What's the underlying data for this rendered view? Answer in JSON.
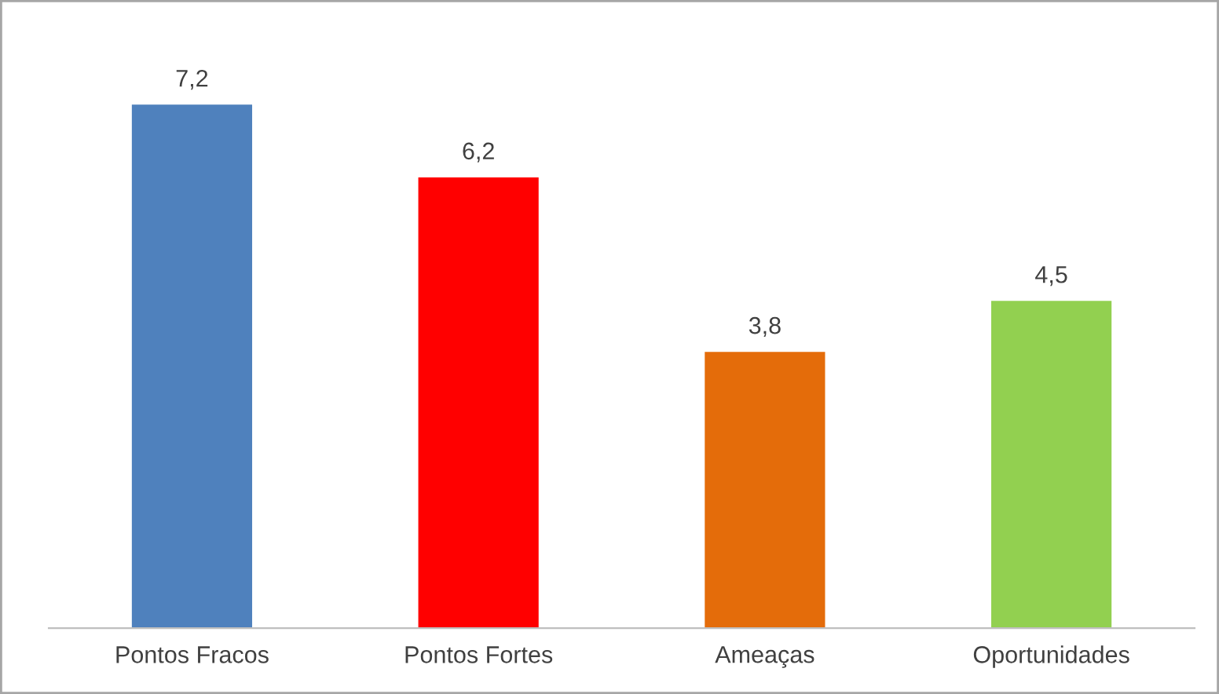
{
  "chart_data": {
    "type": "bar",
    "categories": [
      "Pontos Fracos",
      "Pontos Fortes",
      "Ameaças",
      "Oportunidades"
    ],
    "values": [
      7.2,
      6.2,
      3.8,
      4.5
    ],
    "colors": [
      "#4f81bd",
      "#ff0000",
      "#e46c0a",
      "#92d050"
    ],
    "value_labels": [
      "7,2",
      "6,2",
      "3,8",
      "4,5"
    ],
    "grid": false,
    "legend": false
  }
}
